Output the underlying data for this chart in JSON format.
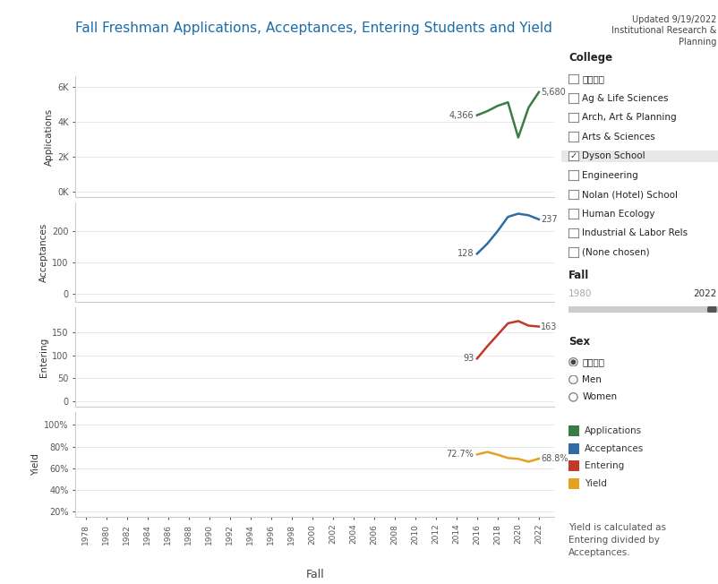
{
  "title": "Fall Freshman Applications, Acceptances, Entering Students and Yield",
  "title_color": "#1a6da8",
  "background_color": "#ffffff",
  "app_years": [
    2016,
    2017,
    2018,
    2019,
    2020,
    2021,
    2022
  ],
  "app_values": [
    4366,
    4600,
    4900,
    5100,
    3100,
    4800,
    5680
  ],
  "app_color": "#3a7d44",
  "acc_years": [
    2016,
    2017,
    2018,
    2019,
    2020,
    2021,
    2022
  ],
  "acc_values": [
    128,
    160,
    200,
    245,
    255,
    250,
    237
  ],
  "acc_color": "#2e6da4",
  "ent_years": [
    2016,
    2017,
    2018,
    2019,
    2020,
    2021,
    2022
  ],
  "ent_values": [
    93,
    120,
    145,
    170,
    175,
    165,
    163
  ],
  "ent_color": "#c0392b",
  "yld_years": [
    2016,
    2017,
    2018,
    2019,
    2020,
    2021,
    2022
  ],
  "yld_values": [
    72.7,
    75.0,
    72.5,
    69.4,
    68.6,
    66.0,
    68.8
  ],
  "yld_color": "#e8a020",
  "xtick_years": [
    1978,
    1980,
    1982,
    1984,
    1986,
    1988,
    1990,
    1992,
    1994,
    1996,
    1998,
    2000,
    2002,
    2004,
    2006,
    2008,
    2010,
    2012,
    2014,
    2016,
    2018,
    2020,
    2022
  ],
  "college_items": [
    "全部",
    "Ag & Life Sciences",
    "Arch, Art & Planning",
    "Arts & Sciences",
    "Dyson School",
    "Engineering",
    "Nolan (Hotel) School",
    "Human Ecology",
    "Industrial & Labor Rels",
    "(None chosen)"
  ],
  "sex_items": [
    "全部",
    "Men",
    "Women"
  ],
  "legend_items": [
    "Applications",
    "Acceptances",
    "Entering",
    "Yield"
  ],
  "legend_colors": [
    "#3a7d44",
    "#2e6da4",
    "#c0392b",
    "#e8a020"
  ],
  "yield_note": "Yield is calculated as\nEntering divided by\nAcceptances."
}
